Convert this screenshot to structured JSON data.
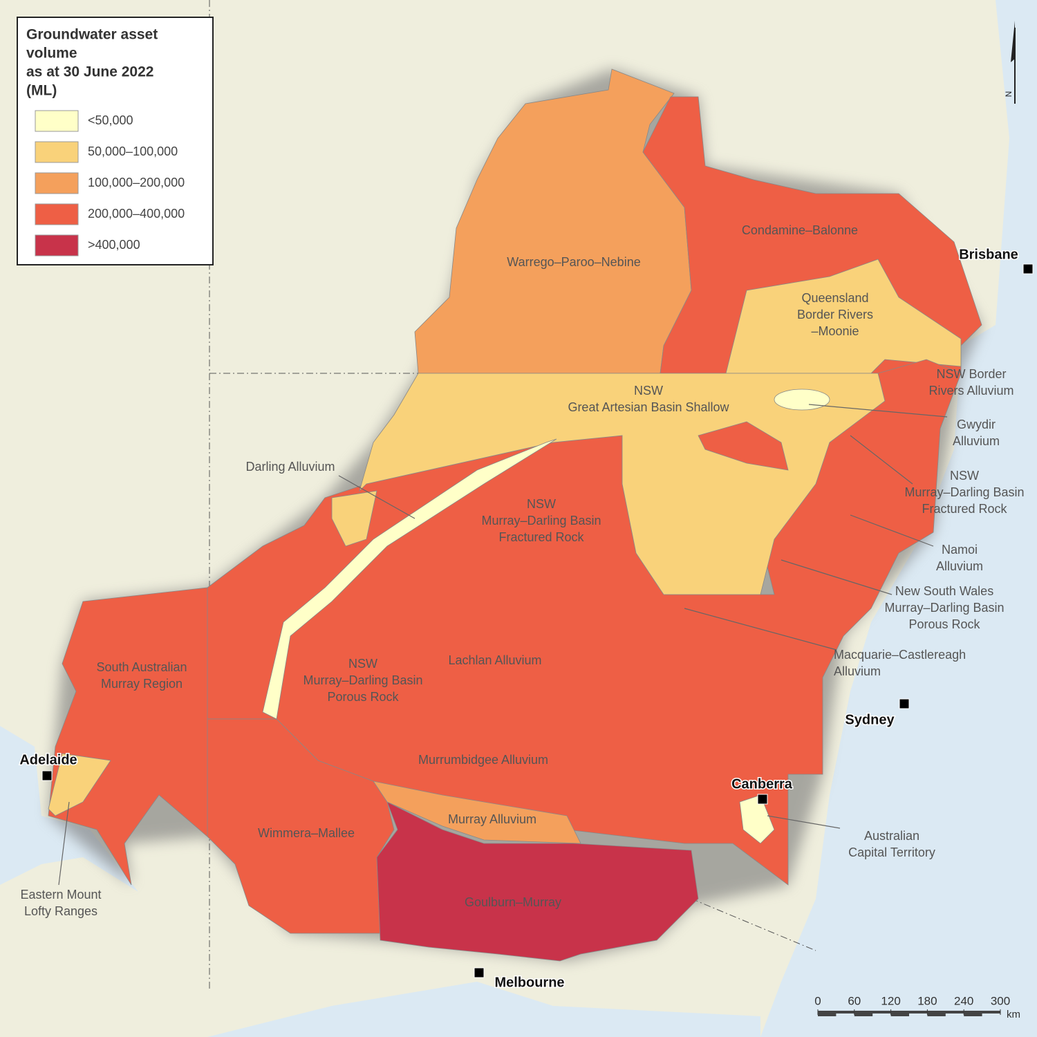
{
  "legend": {
    "title": [
      "Groundwater asset",
      "volume",
      "as at 30 June 2022",
      "(ML)"
    ],
    "items": [
      {
        "label": "<50,000",
        "color": "#ffffc8"
      },
      {
        "label": "50,000–100,000",
        "color": "#f9d27a"
      },
      {
        "label": "100,000–200,000",
        "color": "#f4a05c"
      },
      {
        "label": "200,000–400,000",
        "color": "#ee5f45"
      },
      {
        "label": ">400,000",
        "color": "#c8334a"
      }
    ]
  },
  "regions": [
    {
      "lines": [
        "Warrego–Paroo–Nebine"
      ]
    },
    {
      "lines": [
        "Condamine–Balonne"
      ]
    },
    {
      "lines": [
        "Queensland",
        "Border Rivers",
        "–Moonie"
      ]
    },
    {
      "lines": [
        "NSW Border",
        "Rivers Alluvium"
      ]
    },
    {
      "lines": [
        "NSW",
        "Great Artesian Basin Shallow"
      ]
    },
    {
      "lines": [
        "Gwydir",
        "Alluvium"
      ]
    },
    {
      "lines": [
        "Darling Alluvium"
      ]
    },
    {
      "lines": [
        "NSW",
        "Murray–Darling Basin",
        "Fractured Rock"
      ]
    },
    {
      "lines": [
        "NSW",
        "Murray–Darling Basin",
        "Fractured Rock"
      ]
    },
    {
      "lines": [
        "Namoi",
        "Alluvium"
      ]
    },
    {
      "lines": [
        "New South Wales",
        "Murray–Darling Basin",
        "Porous Rock"
      ]
    },
    {
      "lines": [
        "Macquarie–Castlereagh",
        "Alluvium"
      ]
    },
    {
      "lines": [
        "South Australian",
        "Murray Region"
      ]
    },
    {
      "lines": [
        "NSW",
        "Murray–Darling Basin",
        "Porous Rock"
      ]
    },
    {
      "lines": [
        "Lachlan Alluvium"
      ]
    },
    {
      "lines": [
        "Murrumbidgee Alluvium"
      ]
    },
    {
      "lines": [
        "Murray Alluvium"
      ]
    },
    {
      "lines": [
        "Wimmera–Mallee"
      ]
    },
    {
      "lines": [
        "Goulburn–Murray"
      ]
    },
    {
      "lines": [
        "Australian",
        "Capital Territory"
      ]
    },
    {
      "lines": [
        "Eastern Mount",
        "Lofty Ranges"
      ]
    }
  ],
  "cities": [
    "Brisbane",
    "Sydney",
    "Canberra",
    "Adelaide",
    "Melbourne"
  ],
  "scale_bar": {
    "ticks": [
      0,
      60,
      120,
      180,
      240,
      300
    ],
    "unit": "km"
  },
  "north_arrow": "N"
}
